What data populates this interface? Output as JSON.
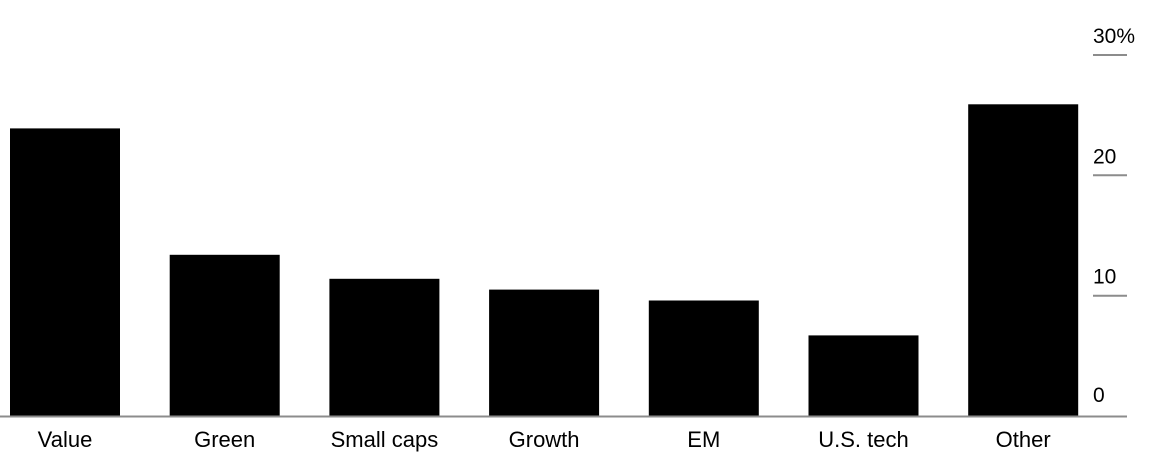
{
  "chart_data": {
    "type": "bar",
    "categories": [
      "Value",
      "Green",
      "Small caps",
      "Growth",
      "EM",
      "U.S. tech",
      "Other"
    ],
    "values": [
      23.9,
      13.4,
      11.4,
      10.5,
      9.6,
      6.7,
      25.9
    ],
    "ylim": [
      0,
      30
    ],
    "yticks": [
      0,
      10,
      20,
      30
    ],
    "ytick_labels": [
      "0",
      "10",
      "20",
      "30%"
    ],
    "yaxis_position": "right",
    "grid": false,
    "colors": {
      "bar": "#000000",
      "axis": "#8c8c8c",
      "text": "#000000"
    }
  }
}
